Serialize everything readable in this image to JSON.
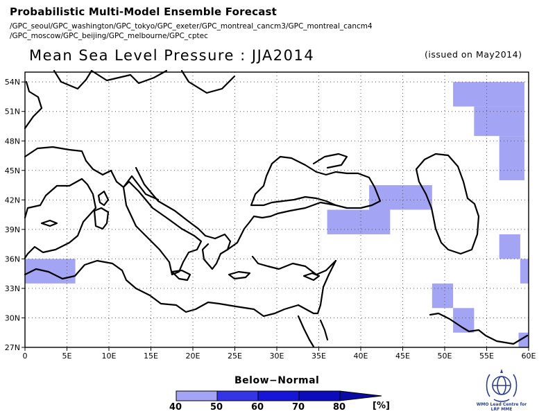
{
  "header": {
    "title": "Probabilistic Multi-Model Ensemble Forecast",
    "models_line1": "/GPC_seoul/GPC_washington/GPC_tokyo/GPC_exeter/GPC_montreal_cancm3/GPC_montreal_cancm4",
    "models_line2": "/GPC_moscow/GPC_beijing/GPC_melbourne/GPC_cptec"
  },
  "map": {
    "title": "Mean Sea Level Pressure : JJA2014",
    "issued": "(issued on May2014)",
    "lat_labels": [
      "54N",
      "51N",
      "48N",
      "45N",
      "42N",
      "39N",
      "36N",
      "33N",
      "30N",
      "27N"
    ],
    "lon_labels": [
      "0",
      "5E",
      "10E",
      "15E",
      "20E",
      "25E",
      "30E",
      "35E",
      "40E",
      "45E",
      "50E",
      "55E",
      "60E"
    ],
    "lon_range": [
      0,
      60
    ],
    "lat_range": [
      27,
      55
    ],
    "grid": true,
    "shaded_cells_category": "Below-Normal 40-50%",
    "shaded_cells": [
      {
        "lon": [
          51,
          59.5
        ],
        "lat": [
          51.5,
          54
        ]
      },
      {
        "lon": [
          53.5,
          59.5
        ],
        "lat": [
          48.5,
          51.5
        ]
      },
      {
        "lon": [
          56.5,
          59.5
        ],
        "lat": [
          44,
          48.5
        ]
      },
      {
        "lon": [
          41,
          48.5
        ],
        "lat": [
          41,
          43.5
        ]
      },
      {
        "lon": [
          36,
          43.5
        ],
        "lat": [
          38.5,
          41
        ]
      },
      {
        "lon": [
          56.5,
          59
        ],
        "lat": [
          36,
          38.5
        ]
      },
      {
        "lon": [
          59,
          60
        ],
        "lat": [
          33.5,
          36
        ]
      },
      {
        "lon": [
          0,
          6
        ],
        "lat": [
          33.5,
          36
        ]
      },
      {
        "lon": [
          48.5,
          51
        ],
        "lat": [
          31,
          33.5
        ]
      },
      {
        "lon": [
          51,
          53.5
        ],
        "lat": [
          28.5,
          31
        ]
      },
      {
        "lon": [
          58.8,
          60
        ],
        "lat": [
          27,
          28.5
        ]
      }
    ]
  },
  "legend": {
    "title": "Below−Normal",
    "ticks": [
      "40",
      "50",
      "60",
      "70",
      "80"
    ],
    "unit": "[%]",
    "colors": [
      "#a4a4f4",
      "#3535e8",
      "#1616d8",
      "#0c0cbc",
      "#0a0aa4"
    ]
  },
  "logo": {
    "text_line1": "WMO Lead Centre for",
    "text_line2": "LRF MME"
  }
}
